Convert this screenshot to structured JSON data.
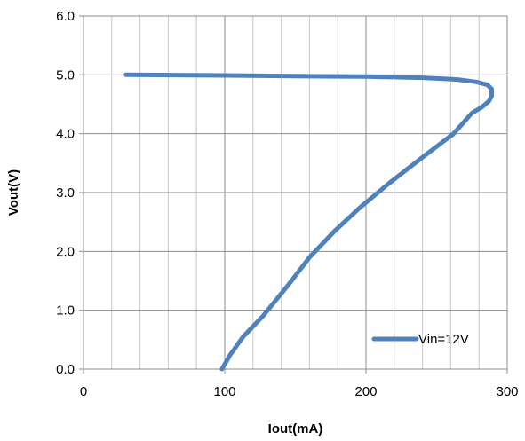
{
  "chart_data": {
    "type": "line",
    "title": "",
    "xlabel": "Iout(mA)",
    "ylabel": "Vout(V)",
    "xlim": [
      0,
      300
    ],
    "ylim": [
      0,
      6
    ],
    "x_ticks": [
      0,
      100,
      200,
      300
    ],
    "x_tick_labels": [
      "0",
      "100",
      "200",
      "300"
    ],
    "y_ticks": [
      0,
      1,
      2,
      3,
      4,
      5,
      6
    ],
    "y_tick_labels": [
      "0.0",
      "1.0",
      "2.0",
      "3.0",
      "4.0",
      "5.0",
      "6.0"
    ],
    "grid": true,
    "legend_position": "bottom-right",
    "series": [
      {
        "name": "Vin=12V",
        "color": "#4f81bd",
        "points": [
          [
            30,
            5.0
          ],
          [
            100,
            4.99
          ],
          [
            150,
            4.98
          ],
          [
            200,
            4.97
          ],
          [
            240,
            4.95
          ],
          [
            265,
            4.92
          ],
          [
            278,
            4.88
          ],
          [
            286,
            4.83
          ],
          [
            289,
            4.76
          ],
          [
            289,
            4.64
          ],
          [
            287,
            4.55
          ],
          [
            282,
            4.45
          ],
          [
            275,
            4.35
          ],
          [
            262,
            4.0
          ],
          [
            240,
            3.6
          ],
          [
            216,
            3.15
          ],
          [
            196,
            2.75
          ],
          [
            178,
            2.35
          ],
          [
            160,
            1.9
          ],
          [
            144,
            1.4
          ],
          [
            127,
            0.9
          ],
          [
            113,
            0.55
          ],
          [
            104,
            0.25
          ],
          [
            98,
            0.0
          ]
        ]
      }
    ]
  }
}
